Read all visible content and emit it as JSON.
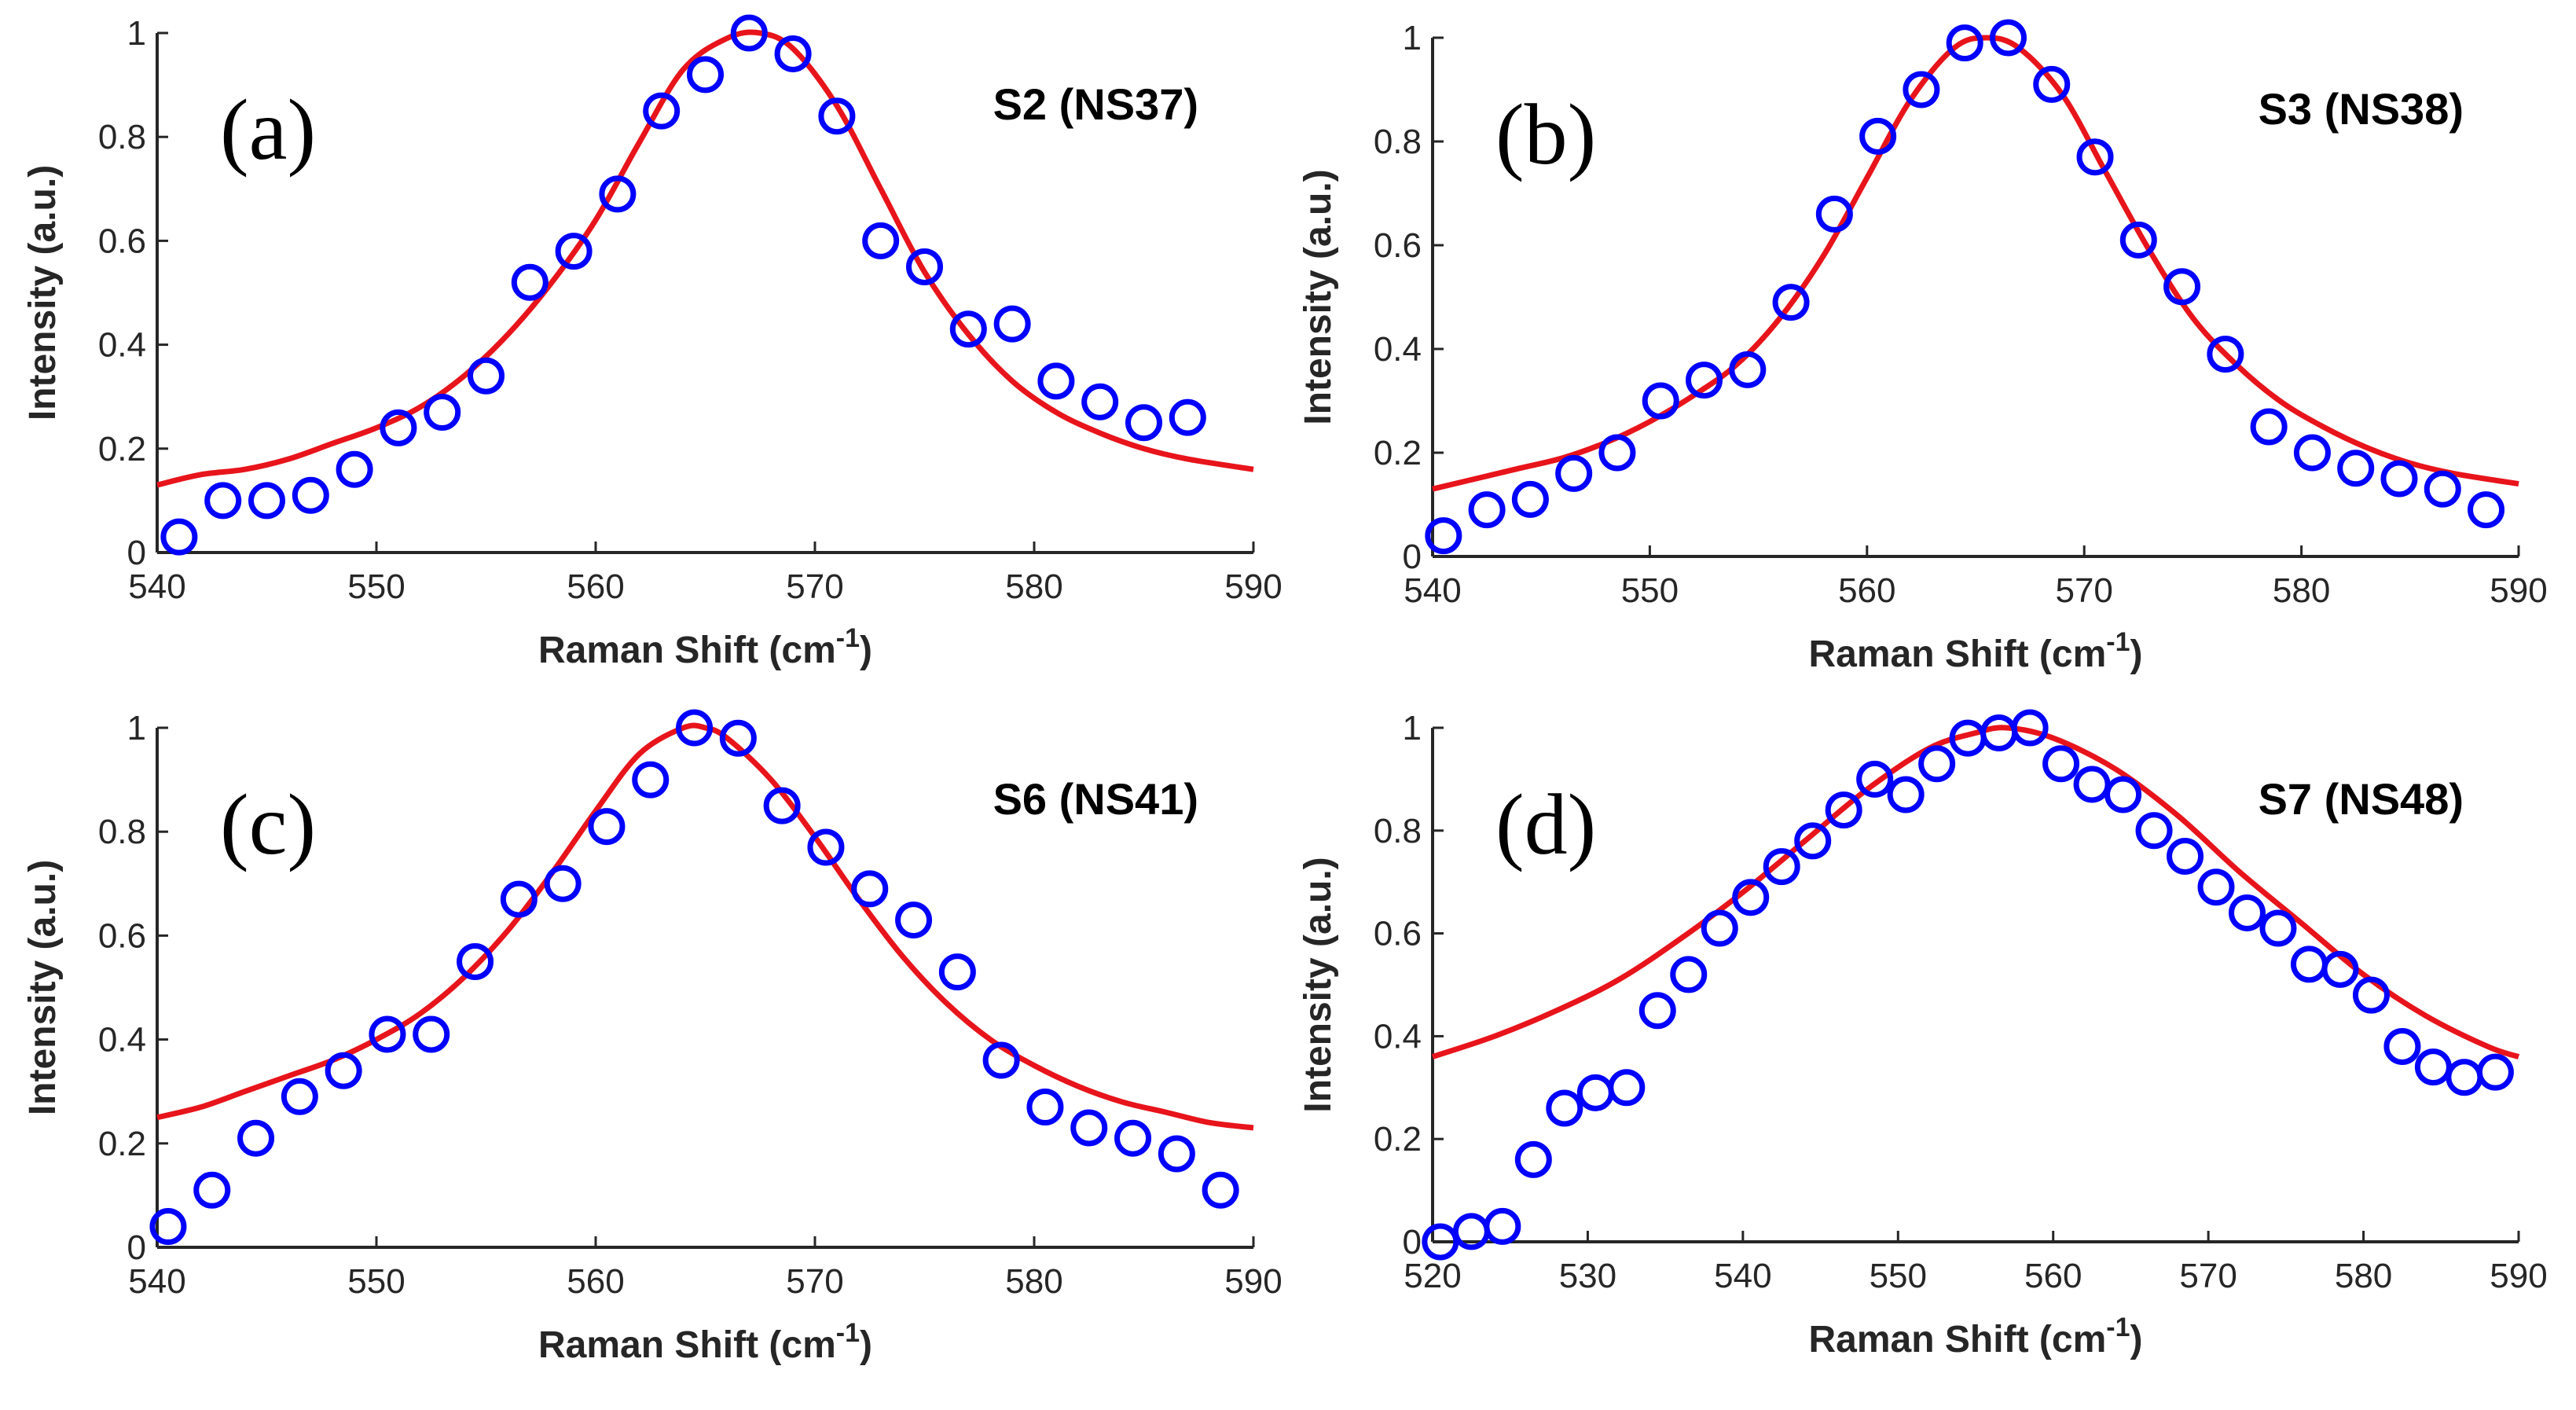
{
  "colors": {
    "data_points": "#0000FF",
    "fit_curve": "#E8141B",
    "axes": "#262626"
  },
  "chart_data": [
    {
      "type": "scatter",
      "panel_label": "(a)",
      "sample_label": "S2 (NS37)",
      "xlabel": "Raman Shift (cm",
      "xlabel_sup": "-1",
      "xlabel_end": ")",
      "ylabel": "Intensity (a.u.)",
      "xlim": [
        540,
        590
      ],
      "ylim": [
        0,
        1
      ],
      "xticks": [
        540,
        550,
        560,
        570,
        580,
        590
      ],
      "yticks": [
        0,
        0.2,
        0.4,
        0.6,
        0.8,
        1
      ],
      "ytick_labels": [
        "0",
        "0.2",
        "0.4",
        "0.6",
        "0.8",
        "1"
      ],
      "series": [
        {
          "kind": "markers",
          "x": [
            541,
            543,
            545,
            547,
            549,
            551,
            553,
            555,
            557,
            559,
            561,
            563,
            565,
            567,
            569,
            571,
            573,
            575,
            577,
            579,
            581,
            583,
            585,
            587
          ],
          "y": [
            0.03,
            0.1,
            0.1,
            0.11,
            0.16,
            0.24,
            0.27,
            0.34,
            0.52,
            0.58,
            0.69,
            0.85,
            0.92,
            1.0,
            0.96,
            0.84,
            0.6,
            0.55,
            0.43,
            0.44,
            0.33,
            0.29,
            0.25,
            0.26
          ]
        },
        {
          "kind": "fit",
          "x": [
            540,
            542,
            544,
            546,
            548,
            550,
            552,
            554,
            556,
            558,
            560,
            562,
            564,
            566,
            567.5,
            569,
            571,
            573,
            575,
            577,
            579,
            581,
            583,
            585,
            587,
            590
          ],
          "y": [
            0.13,
            0.15,
            0.16,
            0.18,
            0.21,
            0.24,
            0.28,
            0.34,
            0.42,
            0.52,
            0.64,
            0.79,
            0.93,
            0.99,
            1.0,
            0.97,
            0.86,
            0.7,
            0.54,
            0.42,
            0.33,
            0.27,
            0.23,
            0.2,
            0.18,
            0.16
          ]
        }
      ]
    },
    {
      "type": "scatter",
      "panel_label": "(b)",
      "sample_label": "S3 (NS38)",
      "xlabel": "Raman Shift (cm",
      "xlabel_sup": "-1",
      "xlabel_end": ")",
      "ylabel": "Intensity (a.u.)",
      "xlim": [
        540,
        590
      ],
      "ylim": [
        0,
        1
      ],
      "xticks": [
        540,
        550,
        560,
        570,
        580,
        590
      ],
      "yticks": [
        0,
        0.2,
        0.4,
        0.6,
        0.8,
        1
      ],
      "ytick_labels": [
        "0",
        "0.2",
        "0.4",
        "0.6",
        "0.8",
        "1"
      ],
      "series": [
        {
          "kind": "markers",
          "x": [
            540.5,
            542.5,
            544.5,
            546.5,
            548.5,
            550.5,
            552.5,
            554.5,
            556.5,
            558.5,
            560.5,
            562.5,
            564.5,
            566.5,
            568.5,
            570.5,
            572.5,
            574.5,
            576.5,
            578.5,
            580.5,
            582.5,
            584.5,
            586.5,
            588.5
          ],
          "y": [
            0.04,
            0.09,
            0.11,
            0.16,
            0.2,
            0.3,
            0.34,
            0.36,
            0.49,
            0.66,
            0.81,
            0.9,
            0.99,
            1.0,
            0.91,
            0.77,
            0.61,
            0.52,
            0.39,
            0.25,
            0.2,
            0.17,
            0.15,
            0.13,
            0.09
          ]
        },
        {
          "kind": "fit",
          "x": [
            540,
            542,
            544,
            546,
            548,
            550,
            552,
            554,
            556,
            558,
            560,
            562,
            564,
            565.5,
            567,
            569,
            571,
            573,
            575,
            577,
            579,
            581,
            583,
            585,
            587,
            590
          ],
          "y": [
            0.13,
            0.15,
            0.17,
            0.19,
            0.22,
            0.26,
            0.31,
            0.37,
            0.46,
            0.58,
            0.73,
            0.88,
            0.98,
            1.0,
            0.98,
            0.89,
            0.74,
            0.59,
            0.46,
            0.37,
            0.3,
            0.25,
            0.21,
            0.18,
            0.16,
            0.14
          ]
        }
      ]
    },
    {
      "type": "scatter",
      "panel_label": "(c)",
      "sample_label": "S6 (NS41)",
      "xlabel": "Raman Shift (cm",
      "xlabel_sup": "-1",
      "xlabel_end": ")",
      "ylabel": "Intensity (a.u.)",
      "xlim": [
        540,
        590
      ],
      "ylim": [
        0,
        1
      ],
      "xticks": [
        540,
        550,
        560,
        570,
        580,
        590
      ],
      "yticks": [
        0,
        0.2,
        0.4,
        0.6,
        0.8,
        1
      ],
      "ytick_labels": [
        "0",
        "0.2",
        "0.4",
        "0.6",
        "0.8",
        "1"
      ],
      "series": [
        {
          "kind": "markers",
          "x": [
            540.5,
            542.5,
            544.5,
            546.5,
            548.5,
            550.5,
            552.5,
            554.5,
            556.5,
            558.5,
            560.5,
            562.5,
            564.5,
            566.5,
            568.5,
            570.5,
            572.5,
            574.5,
            576.5,
            578.5,
            580.5,
            582.5,
            584.5,
            586.5,
            588.5
          ],
          "y": [
            0.04,
            0.11,
            0.21,
            0.29,
            0.34,
            0.41,
            0.41,
            0.55,
            0.67,
            0.7,
            0.81,
            0.9,
            1.0,
            0.98,
            0.85,
            0.77,
            0.69,
            0.63,
            0.53,
            0.36,
            0.27,
            0.23,
            0.21,
            0.18,
            0.11
          ]
        },
        {
          "kind": "fit",
          "x": [
            540,
            542,
            544,
            546,
            548,
            550,
            552,
            554,
            556,
            558,
            560,
            562,
            564,
            565,
            566,
            568,
            570,
            572,
            574,
            576,
            578,
            580,
            582,
            584,
            586,
            588,
            590
          ],
          "y": [
            0.25,
            0.27,
            0.3,
            0.33,
            0.36,
            0.4,
            0.45,
            0.52,
            0.61,
            0.72,
            0.84,
            0.95,
            1.0,
            1.0,
            0.98,
            0.9,
            0.79,
            0.67,
            0.56,
            0.47,
            0.4,
            0.35,
            0.31,
            0.28,
            0.26,
            0.24,
            0.23
          ]
        }
      ]
    },
    {
      "type": "scatter",
      "panel_label": "(d)",
      "sample_label": "S7 (NS48)",
      "xlabel": "Raman Shift (cm",
      "xlabel_sup": "-1",
      "xlabel_end": ")",
      "ylabel": "Intensity (a.u.)",
      "xlim": [
        520,
        590
      ],
      "ylim": [
        0,
        1
      ],
      "xticks": [
        520,
        530,
        540,
        550,
        560,
        570,
        580,
        590
      ],
      "yticks": [
        0,
        0.2,
        0.4,
        0.6,
        0.8,
        1
      ],
      "ytick_labels": [
        "0",
        "0.2",
        "0.4",
        "0.6",
        "0.8",
        "1"
      ],
      "series": [
        {
          "kind": "markers",
          "x": [
            520.5,
            522.5,
            524.5,
            526.5,
            528.5,
            530.5,
            532.5,
            534.5,
            536.5,
            538.5,
            540.5,
            542.5,
            544.5,
            546.5,
            548.5,
            550.5,
            552.5,
            554.5,
            556.5,
            558.5,
            560.5,
            562.5,
            564.5,
            566.5,
            568.5,
            570.5,
            572.5,
            574.5,
            576.5,
            578.5,
            580.5,
            582.5,
            584.5,
            586.5,
            588.5
          ],
          "y": [
            0.0,
            0.02,
            0.03,
            0.16,
            0.26,
            0.29,
            0.3,
            0.45,
            0.52,
            0.61,
            0.67,
            0.73,
            0.78,
            0.84,
            0.9,
            0.87,
            0.93,
            0.98,
            0.99,
            1.0,
            0.93,
            0.89,
            0.87,
            0.8,
            0.75,
            0.69,
            0.64,
            0.61,
            0.54,
            0.53,
            0.48,
            0.38,
            0.34,
            0.32,
            0.33
          ]
        },
        {
          "kind": "fit",
          "x": [
            520,
            524,
            528,
            532,
            536,
            540,
            544,
            548,
            552,
            555,
            557,
            560,
            564,
            568,
            572,
            576,
            580,
            584,
            588,
            590
          ],
          "y": [
            0.36,
            0.4,
            0.45,
            0.51,
            0.59,
            0.68,
            0.78,
            0.88,
            0.96,
            0.99,
            1.0,
            0.98,
            0.92,
            0.83,
            0.72,
            0.62,
            0.52,
            0.44,
            0.38,
            0.36
          ]
        }
      ]
    }
  ]
}
